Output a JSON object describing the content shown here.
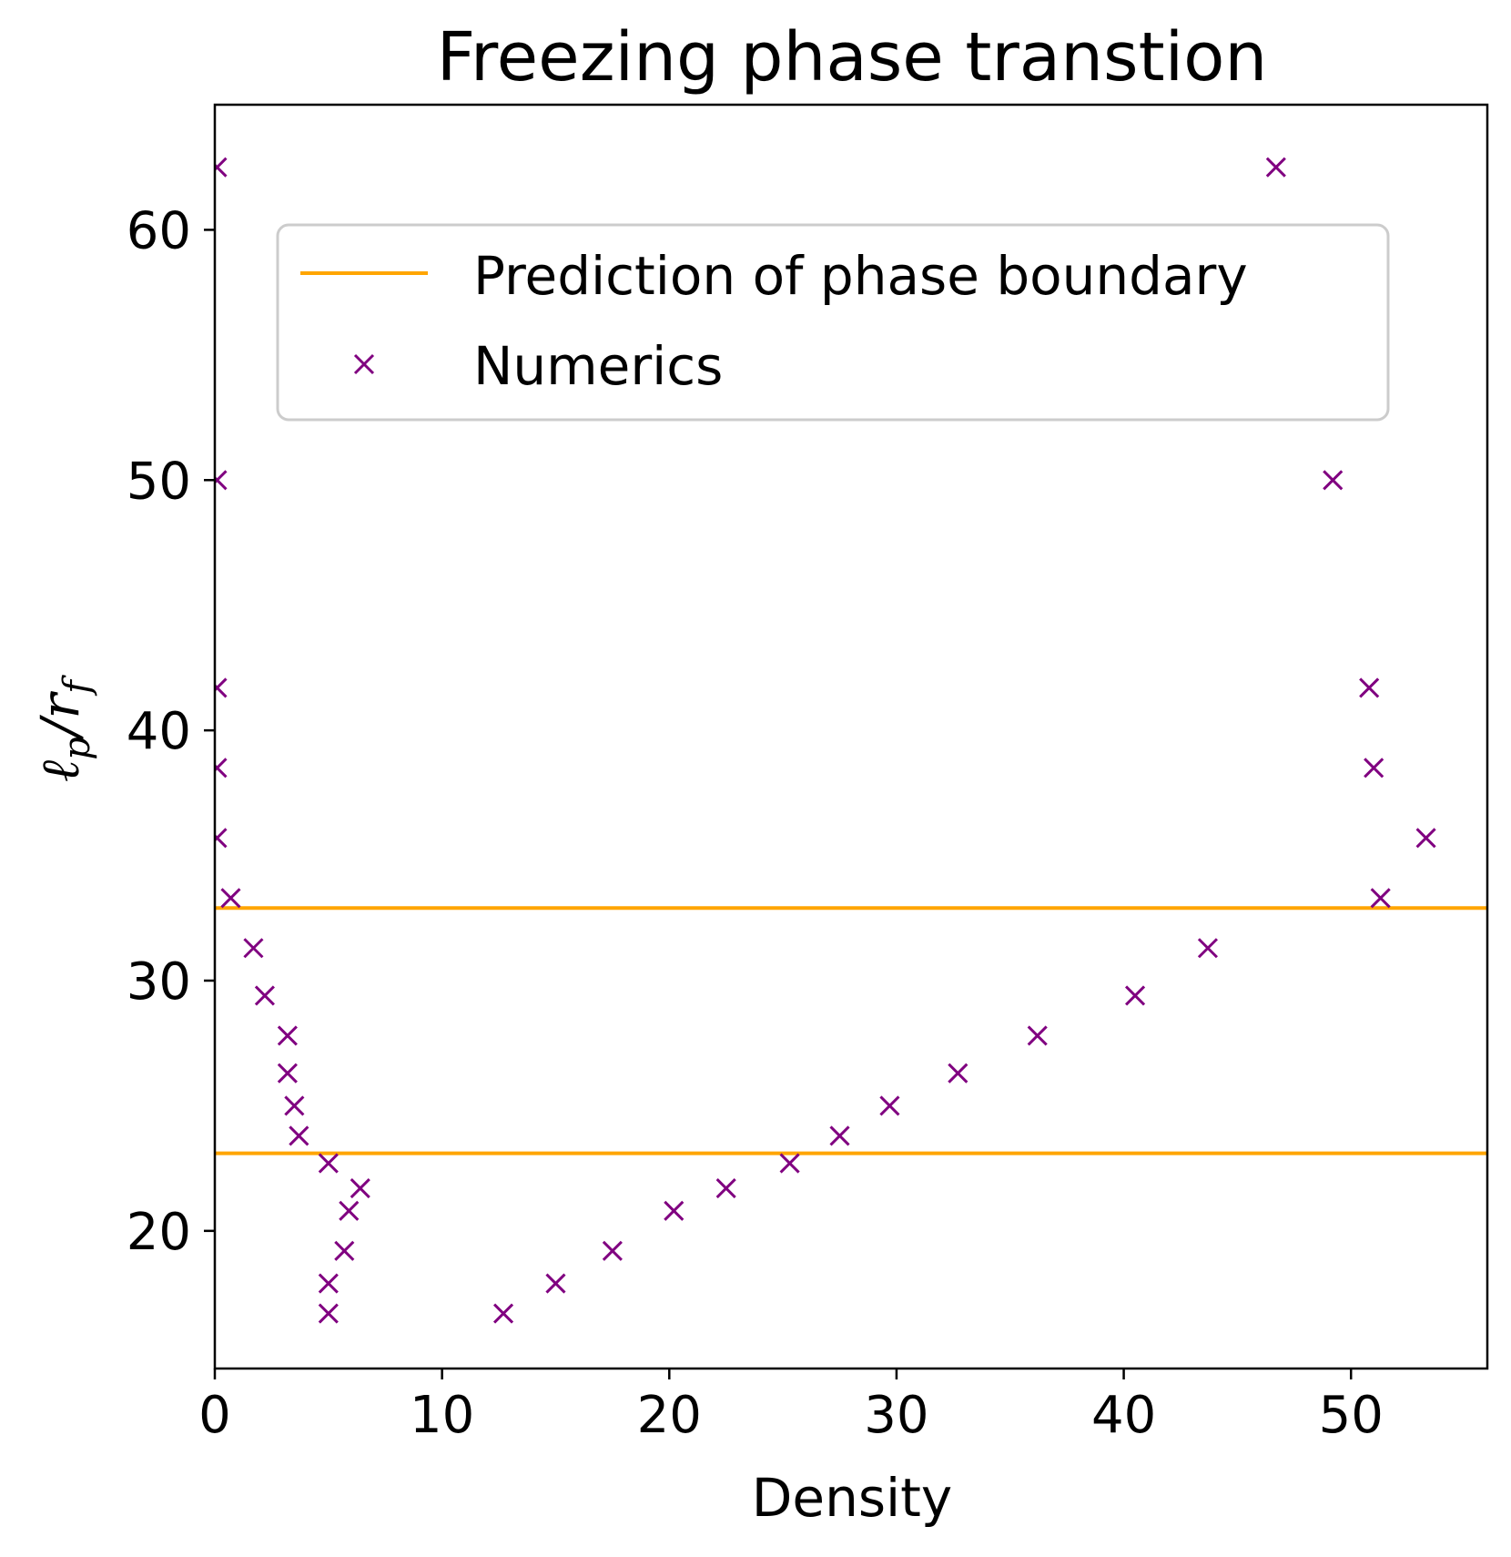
{
  "chart_data": {
    "type": "scatter",
    "title": "Freezing phase transtion",
    "xlabel": "Density",
    "ylabel": {
      "base1": "ℓ",
      "sub1": "p",
      "slash": "/",
      "base2": "r",
      "sub2": "f"
    },
    "xlim": [
      0,
      56
    ],
    "ylim": [
      14.5,
      65
    ],
    "xticks": [
      0,
      10,
      20,
      30,
      40,
      50
    ],
    "yticks": [
      20,
      30,
      40,
      50,
      60
    ],
    "grid": false,
    "legend_placement": "upper-center",
    "legend": [
      {
        "label": "Prediction of phase boundary",
        "kind": "line",
        "color": "#FFA500"
      },
      {
        "label": "Numerics",
        "kind": "marker",
        "color": "#800080"
      }
    ],
    "series": [
      {
        "name": "Prediction of phase boundary",
        "type": "hline",
        "color": "#FFA500",
        "values": [
          32.9,
          23.1
        ]
      },
      {
        "name": "Numerics",
        "type": "scatter",
        "marker": "x",
        "color": "#800080",
        "points": [
          [
            0.1,
            62.5
          ],
          [
            0.1,
            50.0
          ],
          [
            0.1,
            41.7
          ],
          [
            0.1,
            38.5
          ],
          [
            0.1,
            35.7
          ],
          [
            0.7,
            33.3
          ],
          [
            1.7,
            31.3
          ],
          [
            2.2,
            29.4
          ],
          [
            3.2,
            27.8
          ],
          [
            3.2,
            26.3
          ],
          [
            3.5,
            25.0
          ],
          [
            3.7,
            23.8
          ],
          [
            5.0,
            22.7
          ],
          [
            6.4,
            21.7
          ],
          [
            5.9,
            20.8
          ],
          [
            5.7,
            19.2
          ],
          [
            5.0,
            17.9
          ],
          [
            5.0,
            16.7
          ],
          [
            12.7,
            16.7
          ],
          [
            15.0,
            17.9
          ],
          [
            17.5,
            19.2
          ],
          [
            20.2,
            20.8
          ],
          [
            22.5,
            21.7
          ],
          [
            25.3,
            22.7
          ],
          [
            27.5,
            23.8
          ],
          [
            29.7,
            25.0
          ],
          [
            32.7,
            26.3
          ],
          [
            36.2,
            27.8
          ],
          [
            40.5,
            29.4
          ],
          [
            43.7,
            31.3
          ],
          [
            51.3,
            33.3
          ],
          [
            53.3,
            35.7
          ],
          [
            51.0,
            38.5
          ],
          [
            50.8,
            41.7
          ],
          [
            49.2,
            50.0
          ],
          [
            46.7,
            62.5
          ]
        ]
      }
    ]
  }
}
